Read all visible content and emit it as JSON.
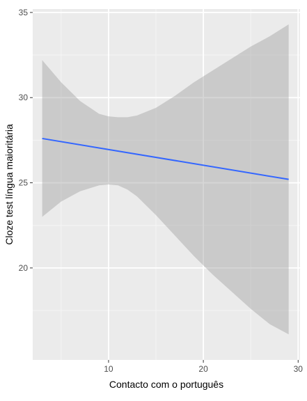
{
  "chart_data": {
    "type": "line",
    "title": "",
    "xlabel": "Contacto com o português",
    "ylabel": "Cloze test língua maioritária",
    "xlim": [
      2,
      30.2
    ],
    "ylim": [
      14.6,
      35.2
    ],
    "x_ticks": [
      10,
      20,
      30
    ],
    "y_ticks": [
      20,
      25,
      30,
      35
    ],
    "x_tick_labels": [
      "10",
      "20",
      "30"
    ],
    "y_tick_labels": [
      "20",
      "25",
      "30",
      "35"
    ],
    "grid": true,
    "legend": "none",
    "series": [
      {
        "x": [
          3,
          29
        ],
        "y": [
          27.6,
          25.2
        ]
      }
    ],
    "confidence_band": {
      "x": [
        3,
        5,
        7,
        9,
        10,
        11,
        12,
        13,
        15,
        17,
        19,
        21,
        23,
        25,
        27,
        29
      ],
      "lower": [
        23.0,
        23.9,
        24.5,
        24.85,
        24.9,
        24.85,
        24.6,
        24.2,
        23.1,
        21.9,
        20.7,
        19.6,
        18.6,
        17.6,
        16.7,
        16.1
      ],
      "upper": [
        32.2,
        30.9,
        29.8,
        29.05,
        28.9,
        28.85,
        28.85,
        28.95,
        29.4,
        30.1,
        30.9,
        31.6,
        32.3,
        33.0,
        33.6,
        34.3
      ]
    },
    "colors": {
      "panel": "#ebebeb",
      "grid_major": "#ffffff",
      "grid_minor": "#f5f5f5",
      "line": "#3366ff",
      "band": "#999999"
    }
  }
}
